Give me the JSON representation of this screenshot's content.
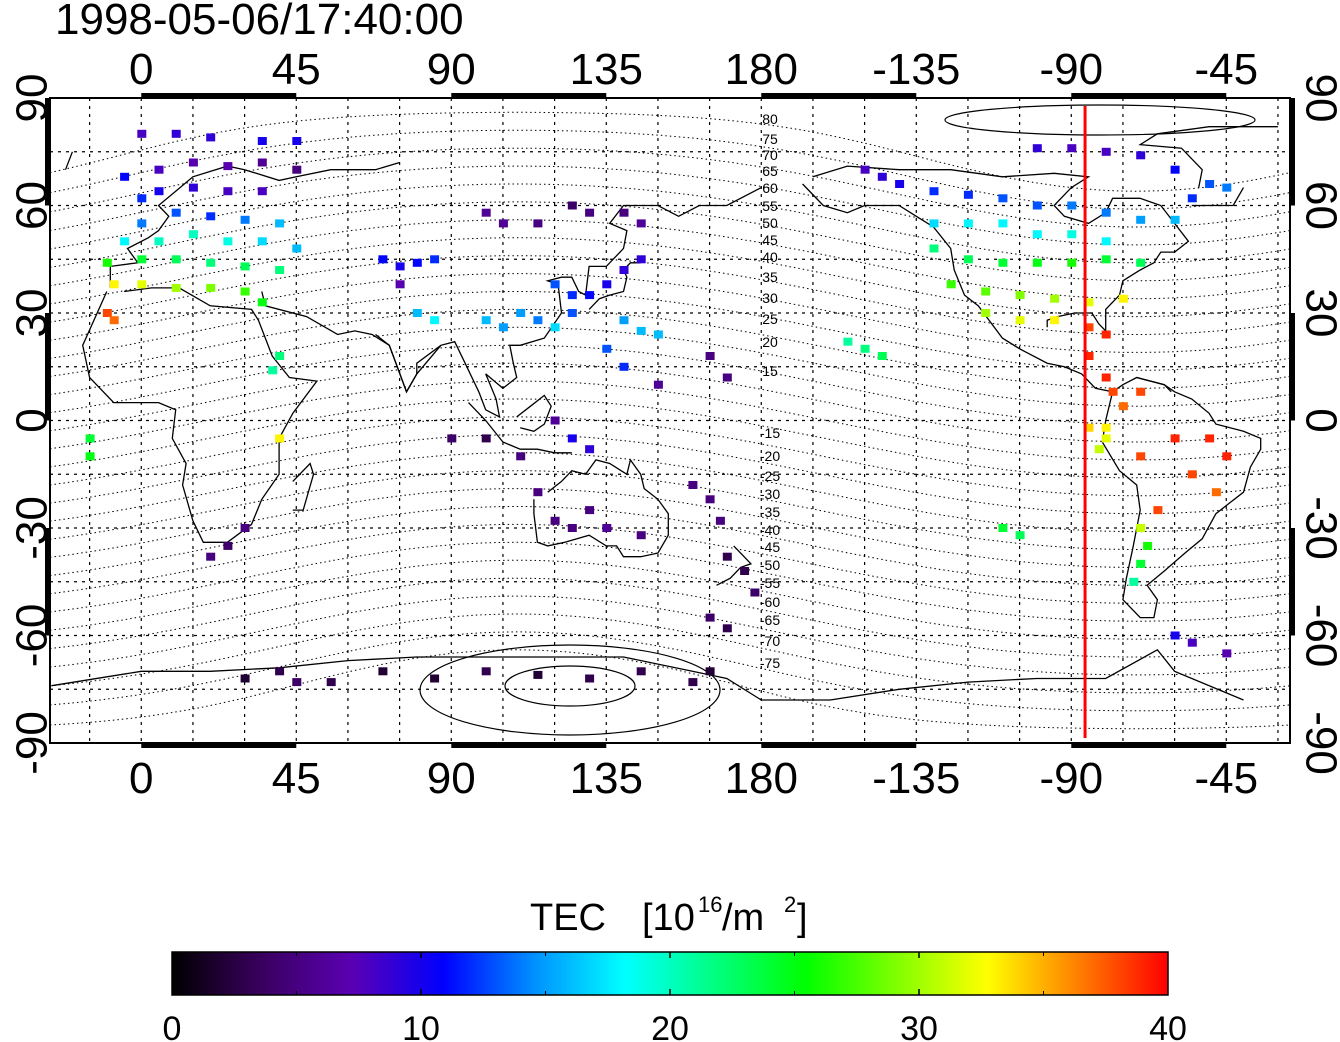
{
  "timestamp": "1998-05-06/17:40:00",
  "axes": {
    "lon_ticks": [
      "0",
      "45",
      "90",
      "135",
      "180",
      "-135",
      "-90",
      "-45"
    ],
    "lat_ticks": [
      "90",
      "60",
      "30",
      "0",
      "-30",
      "-60",
      "-90"
    ]
  },
  "contour_labels": [
    "80",
    "75",
    "70",
    "65",
    "60",
    "55",
    "50",
    "45",
    "40",
    "35",
    "30",
    "25",
    "20",
    "15",
    "-15",
    "-20",
    "-25",
    "-30",
    "-35",
    "-40",
    "-45",
    "-50",
    "-55",
    "-60",
    "-65",
    "-70",
    "-75"
  ],
  "colorbar": {
    "title": "TEC",
    "unit_base": "[10",
    "unit_exp": "16",
    "unit_mid": "/m",
    "unit_exp2": "2",
    "unit_end": "]",
    "ticks": [
      "0",
      "10",
      "20",
      "30",
      "40"
    ],
    "min": 0,
    "max": 40,
    "stops": [
      "#000000",
      "#3a0060",
      "#5a00b4",
      "#0000ff",
      "#0090ff",
      "#00ffff",
      "#00ff80",
      "#00ff00",
      "#80ff00",
      "#ffff00",
      "#ff8000",
      "#ff0000"
    ]
  },
  "marker": {
    "longitude": -86,
    "color": "#ff0000"
  },
  "tec_points": [
    [
      0,
      80,
      8
    ],
    [
      10,
      80,
      9
    ],
    [
      20,
      79,
      9
    ],
    [
      35,
      78,
      10
    ],
    [
      45,
      78,
      10
    ],
    [
      -5,
      68,
      11
    ],
    [
      5,
      70,
      8
    ],
    [
      15,
      72,
      7
    ],
    [
      25,
      71,
      7
    ],
    [
      35,
      72,
      6
    ],
    [
      45,
      70,
      5
    ],
    [
      0,
      62,
      12
    ],
    [
      5,
      64,
      10
    ],
    [
      15,
      65,
      9
    ],
    [
      25,
      64,
      8
    ],
    [
      35,
      64,
      8
    ],
    [
      0,
      55,
      14
    ],
    [
      10,
      58,
      13
    ],
    [
      20,
      57,
      12
    ],
    [
      30,
      56,
      14
    ],
    [
      40,
      55,
      16
    ],
    [
      -5,
      50,
      18
    ],
    [
      5,
      50,
      20
    ],
    [
      15,
      52,
      20
    ],
    [
      25,
      50,
      19
    ],
    [
      35,
      50,
      17
    ],
    [
      45,
      48,
      16
    ],
    [
      -10,
      44,
      26
    ],
    [
      0,
      45,
      24
    ],
    [
      10,
      45,
      23
    ],
    [
      20,
      44,
      22
    ],
    [
      30,
      43,
      23
    ],
    [
      40,
      42,
      22
    ],
    [
      -8,
      38,
      33
    ],
    [
      0,
      38,
      32
    ],
    [
      10,
      37,
      30
    ],
    [
      20,
      37,
      29
    ],
    [
      30,
      36,
      27
    ],
    [
      35,
      33,
      25
    ],
    [
      -10,
      30,
      38
    ],
    [
      -8,
      28,
      37
    ],
    [
      40,
      18,
      22
    ],
    [
      38,
      14,
      21
    ],
    [
      40,
      -5,
      33
    ],
    [
      -15,
      -5,
      24
    ],
    [
      -15,
      -10,
      25
    ],
    [
      70,
      45,
      11
    ],
    [
      75,
      43,
      10
    ],
    [
      80,
      44,
      11
    ],
    [
      85,
      45,
      12
    ],
    [
      75,
      38,
      7
    ],
    [
      80,
      30,
      16
    ],
    [
      85,
      28,
      18
    ],
    [
      100,
      58,
      6
    ],
    [
      105,
      55,
      6
    ],
    [
      115,
      55,
      5
    ],
    [
      125,
      60,
      4
    ],
    [
      130,
      58,
      5
    ],
    [
      140,
      58,
      5
    ],
    [
      145,
      55,
      6
    ],
    [
      100,
      28,
      16
    ],
    [
      105,
      26,
      15
    ],
    [
      110,
      30,
      15
    ],
    [
      115,
      28,
      14
    ],
    [
      120,
      26,
      17
    ],
    [
      125,
      30,
      13
    ],
    [
      130,
      35,
      11
    ],
    [
      135,
      38,
      10
    ],
    [
      140,
      42,
      9
    ],
    [
      145,
      45,
      9
    ],
    [
      125,
      35,
      12
    ],
    [
      120,
      38,
      13
    ],
    [
      140,
      28,
      15
    ],
    [
      145,
      25,
      16
    ],
    [
      150,
      24,
      16
    ],
    [
      135,
      20,
      13
    ],
    [
      140,
      15,
      12
    ],
    [
      150,
      10,
      6
    ],
    [
      165,
      18,
      5
    ],
    [
      170,
      12,
      5
    ],
    [
      120,
      0,
      6
    ],
    [
      125,
      -5,
      10
    ],
    [
      130,
      -8,
      9
    ],
    [
      100,
      -5,
      3
    ],
    [
      90,
      -5,
      4
    ],
    [
      110,
      -10,
      5
    ],
    [
      115,
      -20,
      5
    ],
    [
      120,
      -28,
      5
    ],
    [
      125,
      -30,
      5
    ],
    [
      130,
      -25,
      5
    ],
    [
      135,
      -30,
      6
    ],
    [
      145,
      -32,
      5
    ],
    [
      160,
      -18,
      5
    ],
    [
      165,
      -22,
      5
    ],
    [
      168,
      -28,
      5
    ],
    [
      170,
      -38,
      3
    ],
    [
      175,
      -42,
      3
    ],
    [
      178,
      -48,
      4
    ],
    [
      165,
      -55,
      4
    ],
    [
      170,
      -58,
      3
    ],
    [
      30,
      -30,
      5
    ],
    [
      25,
      -35,
      4
    ],
    [
      20,
      -38,
      5
    ],
    [
      30,
      -72,
      2
    ],
    [
      40,
      -70,
      3
    ],
    [
      55,
      -73,
      3
    ],
    [
      70,
      -70,
      2
    ],
    [
      85,
      -72,
      2
    ],
    [
      100,
      -70,
      3
    ],
    [
      115,
      -71,
      2
    ],
    [
      130,
      -72,
      3
    ],
    [
      145,
      -70,
      3
    ],
    [
      160,
      -73,
      3
    ],
    [
      165,
      -70,
      2
    ],
    [
      45,
      -73,
      4
    ],
    [
      -150,
      70,
      8
    ],
    [
      -145,
      68,
      9
    ],
    [
      -140,
      66,
      10
    ],
    [
      -130,
      64,
      12
    ],
    [
      -120,
      63,
      12
    ],
    [
      -110,
      62,
      13
    ],
    [
      -100,
      60,
      13
    ],
    [
      -90,
      60,
      14
    ],
    [
      -80,
      58,
      14
    ],
    [
      -70,
      56,
      15
    ],
    [
      -60,
      56,
      16
    ],
    [
      -55,
      62,
      12
    ],
    [
      -50,
      66,
      13
    ],
    [
      -45,
      65,
      14
    ],
    [
      -60,
      70,
      11
    ],
    [
      -70,
      74,
      9
    ],
    [
      -80,
      75,
      8
    ],
    [
      -90,
      76,
      8
    ],
    [
      -100,
      76,
      9
    ],
    [
      -130,
      55,
      17
    ],
    [
      -120,
      55,
      18
    ],
    [
      -110,
      55,
      18
    ],
    [
      -100,
      52,
      18
    ],
    [
      -90,
      52,
      19
    ],
    [
      -80,
      50,
      18
    ],
    [
      -130,
      48,
      22
    ],
    [
      -120,
      45,
      23
    ],
    [
      -110,
      44,
      24
    ],
    [
      -100,
      44,
      25
    ],
    [
      -90,
      44,
      26
    ],
    [
      -80,
      45,
      24
    ],
    [
      -70,
      44,
      23
    ],
    [
      -125,
      38,
      27
    ],
    [
      -115,
      36,
      28
    ],
    [
      -105,
      35,
      29
    ],
    [
      -95,
      34,
      30
    ],
    [
      -85,
      33,
      32
    ],
    [
      -75,
      34,
      33
    ],
    [
      -115,
      30,
      30
    ],
    [
      -105,
      28,
      32
    ],
    [
      -95,
      28,
      33
    ],
    [
      -85,
      26,
      38
    ],
    [
      -80,
      24,
      39
    ],
    [
      -150,
      20,
      22
    ],
    [
      -155,
      22,
      21
    ],
    [
      -145,
      18,
      23
    ],
    [
      -85,
      18,
      39
    ],
    [
      -80,
      12,
      39
    ],
    [
      -78,
      8,
      38
    ],
    [
      -75,
      4,
      37
    ],
    [
      -70,
      8,
      38
    ],
    [
      -80,
      -2,
      33
    ],
    [
      -80,
      -5,
      32
    ],
    [
      -82,
      -8,
      31
    ],
    [
      -85,
      -2,
      34
    ],
    [
      -70,
      -10,
      38
    ],
    [
      -60,
      -5,
      39
    ],
    [
      -50,
      -5,
      39
    ],
    [
      -45,
      -10,
      39
    ],
    [
      -55,
      -15,
      38
    ],
    [
      -48,
      -20,
      37
    ],
    [
      -65,
      -25,
      38
    ],
    [
      -70,
      -30,
      31
    ],
    [
      -68,
      -35,
      26
    ],
    [
      -70,
      -40,
      24
    ],
    [
      -72,
      -45,
      21
    ],
    [
      -110,
      -30,
      24
    ],
    [
      -105,
      -32,
      23
    ],
    [
      -60,
      -60,
      10
    ],
    [
      -55,
      -62,
      8
    ],
    [
      -45,
      -65,
      7
    ]
  ]
}
